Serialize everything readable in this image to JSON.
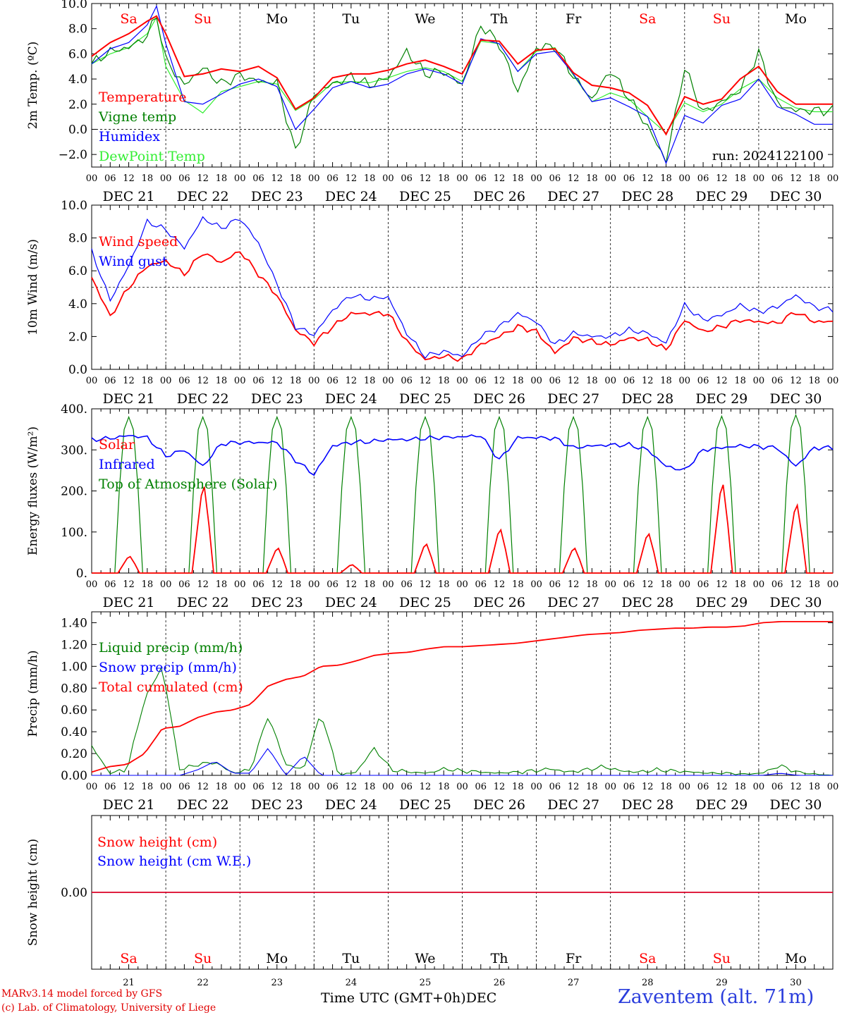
{
  "footer": {
    "credit_line1": "MARv3.14 model forced by GFS",
    "credit_line2": "(c) Lab. of Climatology, University of Liege",
    "time_axis_label": "Time UTC (GMT+0h)",
    "month_label": "DEC",
    "station": "Zaventem (alt. 71m)"
  },
  "colors": {
    "red": "#ff0000",
    "blue": "#0000ff",
    "green": "#008000",
    "lightgreen": "#33ee33",
    "weekend": "#ff0000",
    "weekday": "#000000"
  },
  "chart_data": [
    {
      "type": "line",
      "ylabel": "2m Temp. (ºC)",
      "ylim": [
        -3,
        10
      ],
      "yticks": [
        "10.0",
        "8.0",
        "6.0",
        "4.0",
        "2.0",
        "0.0",
        "−2.0"
      ],
      "ytick_values": [
        10,
        8,
        6,
        4,
        2,
        0,
        -2
      ],
      "dashed_zero": 0,
      "run_label": "run: 2024122100",
      "day_names": [
        "Sa",
        "Su",
        "Mo",
        "Tu",
        "We",
        "Th",
        "Fr",
        "Sa",
        "Su",
        "Mo"
      ],
      "weekend": [
        true,
        true,
        false,
        false,
        false,
        false,
        false,
        true,
        true,
        false
      ],
      "x_hour_labels": [
        "00",
        "06",
        "12",
        "18"
      ],
      "date_labels": [
        "DEC 21",
        "DEC 22",
        "DEC 23",
        "DEC 24",
        "DEC 25",
        "DEC 26",
        "DEC 27",
        "DEC 28",
        "DEC 29",
        "DEC 30"
      ],
      "x_hours": [
        0,
        6,
        12,
        18,
        21,
        24,
        30,
        36,
        42,
        48,
        54,
        60,
        66,
        72,
        78,
        84,
        90,
        96,
        102,
        108,
        114,
        120,
        126,
        132,
        138,
        144,
        150,
        156,
        162,
        168,
        174,
        180,
        186,
        192,
        198,
        204,
        210,
        216,
        222,
        228,
        234,
        240
      ],
      "series": [
        {
          "name": "Temperature",
          "color": "#ff0000",
          "values": [
            5.8,
            6.9,
            7.6,
            8.6,
            9.0,
            7.6,
            4.2,
            4.4,
            4.8,
            4.6,
            5.0,
            4.1,
            1.6,
            2.5,
            4.1,
            4.4,
            4.4,
            4.7,
            5.2,
            5.5,
            5.0,
            4.4,
            7.1,
            7.0,
            5.2,
            6.3,
            6.4,
            4.5,
            3.5,
            3.3,
            2.9,
            1.9,
            -0.4,
            2.6,
            2.0,
            2.4,
            4.0,
            5.0,
            3.0,
            2.0,
            2.0,
            2.0
          ]
        },
        {
          "name": "Vigne temp",
          "color": "#008000",
          "values": [
            5.2,
            6.2,
            6.5,
            7.4,
            9.1,
            5.5,
            3.5,
            4.9,
            3.6,
            4.3,
            3.8,
            3.7,
            -1.8,
            2.8,
            3.6,
            4.2,
            3.5,
            4.1,
            6.2,
            4.4,
            4.6,
            3.5,
            8.3,
            6.8,
            3.0,
            6.5,
            6.6,
            4.2,
            2.4,
            4.7,
            2.5,
            0.2,
            -2.5,
            4.9,
            1.3,
            2.2,
            3.1,
            6.1,
            2.0,
            1.5,
            1.5,
            1.5
          ]
        },
        {
          "name": "Humidex",
          "color": "#0000ff",
          "values": [
            5.2,
            6.4,
            6.9,
            8.3,
            9.8,
            6.8,
            2.2,
            2.0,
            2.8,
            3.6,
            4.0,
            3.4,
            0.0,
            1.6,
            3.3,
            3.8,
            3.3,
            3.6,
            4.4,
            4.8,
            4.4,
            3.6,
            7.2,
            6.8,
            4.6,
            6.0,
            6.2,
            4.4,
            2.2,
            2.5,
            1.8,
            1.0,
            -2.7,
            1.1,
            0.5,
            1.9,
            2.4,
            4.0,
            1.8,
            1.2,
            0.4,
            0.4
          ]
        },
        {
          "name": "DewPoint Temp",
          "color": "#33ee33",
          "values": [
            5.2,
            6.0,
            6.5,
            7.6,
            8.9,
            5.0,
            2.3,
            1.3,
            3.0,
            3.4,
            3.8,
            3.6,
            1.5,
            2.4,
            3.7,
            3.8,
            3.7,
            4.1,
            4.6,
            4.9,
            4.6,
            3.8,
            7.0,
            6.8,
            4.6,
            6.2,
            6.5,
            4.3,
            2.2,
            2.9,
            2.4,
            1.0,
            -0.3,
            2.1,
            1.4,
            2.0,
            3.2,
            4.0,
            2.5,
            1.7,
            1.4,
            1.4
          ]
        }
      ]
    },
    {
      "type": "line",
      "ylabel": "10m Wind (m/s)",
      "ylim": [
        0,
        10
      ],
      "yticks": [
        "10.0",
        "8.0",
        "6.0",
        "4.0",
        "2.0",
        "0.0"
      ],
      "ytick_values": [
        10,
        8,
        6,
        4,
        2,
        0
      ],
      "dashed_zero": 5,
      "x_hour_labels": [
        "00",
        "06",
        "12",
        "18"
      ],
      "date_labels": [
        "DEC 21",
        "DEC 22",
        "DEC 23",
        "DEC 24",
        "DEC 25",
        "DEC 26",
        "DEC 27",
        "DEC 28",
        "DEC 29",
        "DEC 30"
      ],
      "x_hours": [
        0,
        6,
        12,
        18,
        24,
        30,
        36,
        42,
        48,
        54,
        60,
        66,
        72,
        78,
        84,
        90,
        96,
        102,
        108,
        114,
        120,
        126,
        132,
        138,
        144,
        150,
        156,
        162,
        168,
        174,
        180,
        186,
        192,
        198,
        204,
        210,
        216,
        222,
        228,
        234,
        240
      ],
      "series": [
        {
          "name": "Wind speed",
          "color": "#ff0000",
          "values": [
            5.6,
            3.2,
            5.0,
            6.3,
            6.6,
            5.8,
            7.1,
            6.5,
            7.2,
            5.8,
            4.5,
            2.4,
            1.6,
            2.6,
            3.4,
            3.4,
            3.4,
            1.7,
            0.6,
            0.8,
            0.6,
            1.5,
            2.0,
            2.6,
            2.3,
            1.0,
            1.9,
            1.7,
            1.5,
            1.9,
            1.8,
            1.2,
            3.0,
            2.3,
            2.6,
            3.0,
            2.9,
            2.8,
            3.5,
            2.9,
            2.9
          ]
        },
        {
          "name": "Wind gust",
          "color": "#0000ff",
          "values": [
            7.2,
            4.2,
            6.3,
            9.0,
            8.5,
            7.4,
            9.2,
            8.6,
            9.2,
            7.7,
            5.2,
            2.6,
            2.1,
            3.6,
            4.5,
            4.3,
            4.4,
            2.2,
            0.8,
            1.1,
            0.8,
            2.0,
            2.6,
            3.4,
            2.9,
            1.5,
            2.2,
            2.0,
            2.0,
            2.4,
            2.2,
            1.6,
            3.9,
            3.0,
            3.3,
            3.9,
            3.5,
            3.8,
            4.5,
            3.8,
            3.6
          ]
        }
      ]
    },
    {
      "type": "line",
      "ylabel": "Energy fluxes (W/m²)",
      "ylim": [
        0,
        400
      ],
      "yticks": [
        "400.",
        "300.",
        "200.",
        "100.",
        "0."
      ],
      "ytick_values": [
        400,
        300,
        200,
        100,
        0
      ],
      "x_hour_labels": [
        "00",
        "06",
        "12",
        "18"
      ],
      "date_labels": [
        "DEC 21",
        "DEC 22",
        "DEC 23",
        "DEC 24",
        "DEC 25",
        "DEC 26",
        "DEC 27",
        "DEC 28",
        "DEC 29",
        "DEC 30"
      ],
      "series": [
        {
          "name": "Solar",
          "color": "#ff0000",
          "peaks": [
            40,
            210,
            60,
            20,
            70,
            105,
            60,
            95,
            215,
            165
          ]
        },
        {
          "name": "Infrared",
          "color": "#0000ff",
          "values": [
            325,
            328,
            335,
            330,
            285,
            300,
            260,
            315,
            318,
            318,
            318,
            275,
            240,
            310,
            318,
            320,
            325,
            325,
            328,
            330,
            332,
            335,
            275,
            330,
            330,
            328,
            305,
            310,
            312,
            312,
            300,
            260,
            250,
            300,
            305,
            310,
            308,
            305,
            260,
            305,
            305
          ]
        },
        {
          "name": "Top of Atmosphere (Solar)",
          "color": "#008000",
          "peaks": [
            380,
            380,
            380,
            380,
            380,
            380,
            380,
            380,
            382,
            385
          ]
        }
      ]
    },
    {
      "type": "line",
      "ylabel": "Precip (mm/h)",
      "ylim": [
        0,
        1.5
      ],
      "yticks": [
        "1.40",
        "1.20",
        "1.00",
        "0.80",
        "0.60",
        "0.40",
        "0.20",
        "0.00"
      ],
      "ytick_values": [
        1.4,
        1.2,
        1.0,
        0.8,
        0.6,
        0.4,
        0.2,
        0
      ],
      "x_hour_labels": [
        "00",
        "06",
        "12",
        "18"
      ],
      "date_labels": [
        "DEC 21",
        "DEC 22",
        "DEC 23",
        "DEC 24",
        "DEC 25",
        "DEC 26",
        "DEC 27",
        "DEC 28",
        "DEC 29",
        "DEC 30"
      ],
      "series": [
        {
          "name": "Liquid precip (mm/h)",
          "color": "#008000",
          "values": [
            0.27,
            0.02,
            0.05,
            0.7,
            1.0,
            0.05,
            0.1,
            0.12,
            0.02,
            0.05,
            0.55,
            0.1,
            0.05,
            0.58,
            0.0,
            0.03,
            0.25,
            0.05,
            0.03,
            0.02,
            0.06,
            0.04,
            0.03,
            0.02,
            0.03,
            0.04,
            0.06,
            0.03,
            0.05,
            0.08,
            0.04,
            0.03,
            0.05,
            0.04,
            0.03,
            0.02,
            0.02,
            0.01,
            0.02,
            0.09,
            0.03,
            0.01,
            0.0
          ]
        },
        {
          "name": "Snow precip (mm/h)",
          "color": "#0000ff",
          "values": [
            0.0,
            0.0,
            0.0,
            0.0,
            0.0,
            0.0,
            0.05,
            0.13,
            0.02,
            0.02,
            0.25,
            0.0,
            0.18,
            0.0,
            0.0,
            0.0,
            0.0,
            0.0,
            0.0,
            0.0,
            0.0,
            0.0,
            0.0,
            0.0,
            0.0,
            0.0,
            0.0,
            0.0,
            0.0,
            0.0,
            0.0,
            0.0,
            0.0,
            0.0,
            0.0,
            0.0,
            0.0,
            0.0,
            0.0,
            0.02,
            0.0,
            0.0,
            0.0
          ]
        },
        {
          "name": "Total cumulated (cm)",
          "color": "#ff0000",
          "values": [
            0.03,
            0.08,
            0.1,
            0.2,
            0.43,
            0.45,
            0.53,
            0.58,
            0.6,
            0.65,
            0.82,
            0.88,
            0.91,
            1.0,
            1.01,
            1.05,
            1.1,
            1.12,
            1.13,
            1.16,
            1.18,
            1.18,
            1.19,
            1.2,
            1.21,
            1.23,
            1.25,
            1.27,
            1.29,
            1.3,
            1.31,
            1.33,
            1.34,
            1.35,
            1.35,
            1.36,
            1.36,
            1.37,
            1.4,
            1.41,
            1.41,
            1.41,
            1.41
          ]
        }
      ]
    },
    {
      "type": "line",
      "ylabel": "Snow height (cm)",
      "ylim": [
        -1,
        1
      ],
      "yticks": [
        "0.00"
      ],
      "ytick_values": [
        0
      ],
      "day_names": [
        "Sa",
        "Su",
        "Mo",
        "Tu",
        "We",
        "Th",
        "Fr",
        "Sa",
        "Su",
        "Mo"
      ],
      "weekend": [
        true,
        true,
        false,
        false,
        false,
        false,
        false,
        true,
        true,
        false
      ],
      "day_numbers": [
        "21",
        "22",
        "23",
        "24",
        "25",
        "26",
        "27",
        "28",
        "29",
        "30"
      ],
      "series": [
        {
          "name": "Snow height (cm)",
          "color": "#ff0000",
          "values": [
            0,
            0
          ]
        },
        {
          "name": "Snow height (cm W.E.)",
          "color": "#0000ff",
          "values": [
            0,
            0
          ]
        }
      ]
    }
  ]
}
